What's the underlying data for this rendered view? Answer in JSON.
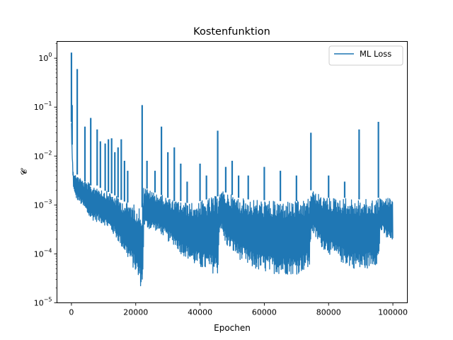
{
  "chart_data": {
    "type": "line",
    "title": "Kostenfunktion",
    "xlabel": "Epochen",
    "ylabel": "𝓒",
    "yscale": "log",
    "xlim": [
      -4500,
      104500
    ],
    "ylim": [
      1e-05,
      2.2
    ],
    "xticks": [
      0,
      20000,
      40000,
      60000,
      80000,
      100000
    ],
    "xtick_labels": [
      "0",
      "20000",
      "40000",
      "60000",
      "80000",
      "100000"
    ],
    "yticks": [
      1e-05,
      0.0001,
      0.001,
      0.01,
      0.1,
      1
    ],
    "legend": {
      "position": "top-right",
      "entries": [
        "ML Loss"
      ]
    },
    "grid": false,
    "color": "#1f77b4",
    "series": [
      {
        "name": "ML Loss",
        "x": [
          0,
          300,
          600,
          1000,
          1500,
          2000,
          3000,
          4000,
          5000,
          6000,
          8000,
          10000,
          12000,
          14000,
          16000,
          18000,
          20000,
          21000,
          22000,
          22500,
          24000,
          26000,
          28000,
          30000,
          32000,
          34000,
          36000,
          38000,
          40000,
          42000,
          44000,
          45500,
          46000,
          48000,
          50000,
          52000,
          55000,
          58000,
          62000,
          66000,
          70000,
          72000,
          74000,
          74500,
          76000,
          78000,
          80000,
          82000,
          85000,
          88000,
          90000,
          92000,
          94000,
          95500,
          96000,
          98000,
          100000
        ],
        "low": [
          0.02,
          0.004,
          0.002,
          0.0015,
          0.0013,
          0.0012,
          0.001,
          0.0008,
          0.0006,
          0.0005,
          0.00045,
          0.0004,
          0.0003,
          0.0002,
          0.00012,
          7e-05,
          4e-05,
          2.5e-05,
          1.8e-05,
          0.00035,
          0.00032,
          0.0003,
          0.00025,
          0.00018,
          0.00015,
          0.0001,
          8e-05,
          6e-05,
          5e-05,
          4.5e-05,
          4e-05,
          3.8e-05,
          0.00035,
          0.00015,
          0.00011,
          8e-05,
          5.5e-05,
          4.5e-05,
          4e-05,
          3.8e-05,
          3.8e-05,
          4.5e-05,
          5e-05,
          0.0003,
          0.0002,
          0.00013,
          0.0001,
          8e-05,
          6e-05,
          5e-05,
          4.5e-05,
          5e-05,
          6e-05,
          6e-05,
          0.0003,
          0.0002,
          0.00016
        ],
        "high": [
          0.05,
          0.01,
          0.005,
          0.004,
          0.0045,
          0.004,
          0.0035,
          0.003,
          0.003,
          0.0025,
          0.0025,
          0.002,
          0.0018,
          0.0015,
          0.0012,
          0.0011,
          0.001,
          0.0009,
          0.0009,
          0.0025,
          0.002,
          0.0018,
          0.0016,
          0.0014,
          0.0012,
          0.0012,
          0.0011,
          0.0011,
          0.0012,
          0.0013,
          0.0015,
          0.0015,
          0.002,
          0.0018,
          0.0016,
          0.0014,
          0.0013,
          0.0013,
          0.0012,
          0.0012,
          0.0012,
          0.0012,
          0.0014,
          0.002,
          0.0018,
          0.0015,
          0.0014,
          0.0014,
          0.0014,
          0.0013,
          0.0013,
          0.0013,
          0.0013,
          0.0014,
          0.0014,
          0.0014,
          0.0014
        ],
        "spikes": [
          [
            0,
            1.3
          ],
          [
            200,
            0.11
          ],
          [
            1800,
            0.6
          ],
          [
            4200,
            0.04
          ],
          [
            6000,
            0.06
          ],
          [
            8000,
            0.035
          ],
          [
            9000,
            0.02
          ],
          [
            10500,
            0.018
          ],
          [
            11500,
            0.022
          ],
          [
            12500,
            0.023
          ],
          [
            13500,
            0.012
          ],
          [
            14500,
            0.015
          ],
          [
            15500,
            0.022
          ],
          [
            16500,
            0.008
          ],
          [
            17500,
            0.005
          ],
          [
            22000,
            0.11
          ],
          [
            23500,
            0.008
          ],
          [
            26000,
            0.005
          ],
          [
            28000,
            0.04
          ],
          [
            30000,
            0.012
          ],
          [
            32000,
            0.015
          ],
          [
            34000,
            0.007
          ],
          [
            36000,
            0.003
          ],
          [
            40000,
            0.007
          ],
          [
            42000,
            0.004
          ],
          [
            45500,
            0.033
          ],
          [
            48000,
            0.006
          ],
          [
            50000,
            0.008
          ],
          [
            52000,
            0.004
          ],
          [
            55000,
            0.004
          ],
          [
            60000,
            0.006
          ],
          [
            65000,
            0.005
          ],
          [
            70000,
            0.004
          ],
          [
            74500,
            0.03
          ],
          [
            80000,
            0.004
          ],
          [
            85000,
            0.003
          ],
          [
            89500,
            0.035
          ],
          [
            95500,
            0.05
          ]
        ]
      }
    ]
  }
}
